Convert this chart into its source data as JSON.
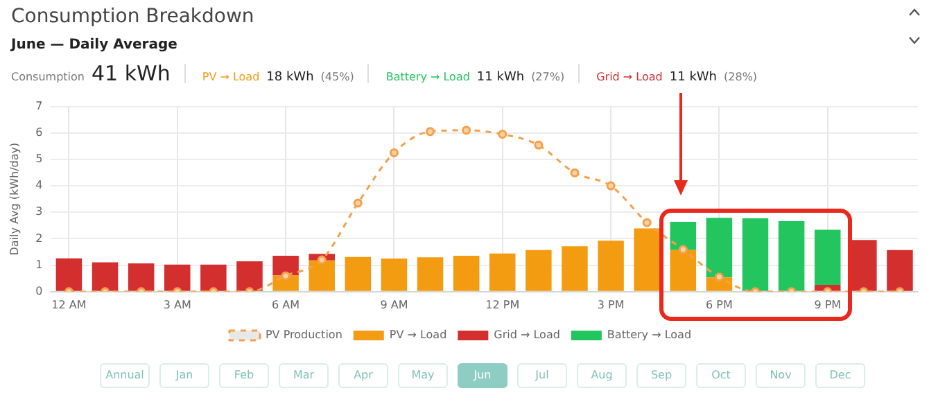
{
  "chart_data": {
    "type": "bar",
    "title": "Consumption Breakdown",
    "subtitle": "June — Daily Average",
    "ylabel": "Daily Avg (kWh/day)",
    "categories": [
      "12 AM",
      null,
      null,
      "3 AM",
      null,
      null,
      "6 AM",
      null,
      null,
      "9 AM",
      null,
      null,
      "12 PM",
      null,
      null,
      "3 PM",
      null,
      null,
      "6 PM",
      null,
      null,
      "9 PM",
      null,
      null
    ],
    "stacked": true,
    "ylim": [
      0,
      7
    ],
    "yticks": [
      0,
      1,
      2,
      3,
      4,
      5,
      6,
      7
    ],
    "grid": true,
    "legend": "bottom",
    "series": [
      {
        "name": "PV Production",
        "type": "line",
        "color": "#f5a04a",
        "marker": "circle",
        "line_style": "dashed",
        "values": [
          0,
          0,
          0,
          0,
          0,
          0,
          0.6,
          1.2,
          3.35,
          5.25,
          6.05,
          6.1,
          5.95,
          5.54,
          4.49,
          4.0,
          2.61,
          1.59,
          0.55,
          0,
          0,
          0,
          0,
          0
        ]
      },
      {
        "name": "PV → Load",
        "color": "#f39c12",
        "values": [
          null,
          null,
          null,
          null,
          null,
          null,
          0.61,
          1.18,
          1.31,
          1.25,
          1.3,
          1.36,
          1.44,
          1.57,
          1.72,
          1.93,
          2.39,
          1.57,
          0.54,
          null,
          null,
          null,
          null,
          null
        ]
      },
      {
        "name": "Grid → Load",
        "color": "#d32f2f",
        "values": [
          1.26,
          1.11,
          1.07,
          1.02,
          1.02,
          1.15,
          0.75,
          0.25,
          null,
          null,
          null,
          null,
          null,
          null,
          null,
          null,
          null,
          null,
          null,
          null,
          null,
          0.26,
          1.95,
          1.57
        ]
      },
      {
        "name": "Battery → Load",
        "color": "#22c55e",
        "values": [
          null,
          null,
          null,
          null,
          null,
          null,
          null,
          null,
          null,
          null,
          null,
          null,
          null,
          null,
          null,
          null,
          null,
          1.07,
          2.25,
          2.77,
          2.67,
          2.08,
          null,
          null
        ]
      }
    ],
    "annotations": [
      "Consumption",
      "41 kWh",
      "PV → Load",
      "18 kWh",
      "(45%)",
      "Battery → Load",
      "11 kWh",
      "(27%)",
      "Grid → Load",
      "11 kWh",
      "(28%)",
      "Annual",
      "Jan",
      "Feb",
      "Mar",
      "Apr",
      "May",
      "Jun",
      "Jul",
      "Aug",
      "Sep",
      "Oct",
      "Nov",
      "Dec"
    ]
  }
}
